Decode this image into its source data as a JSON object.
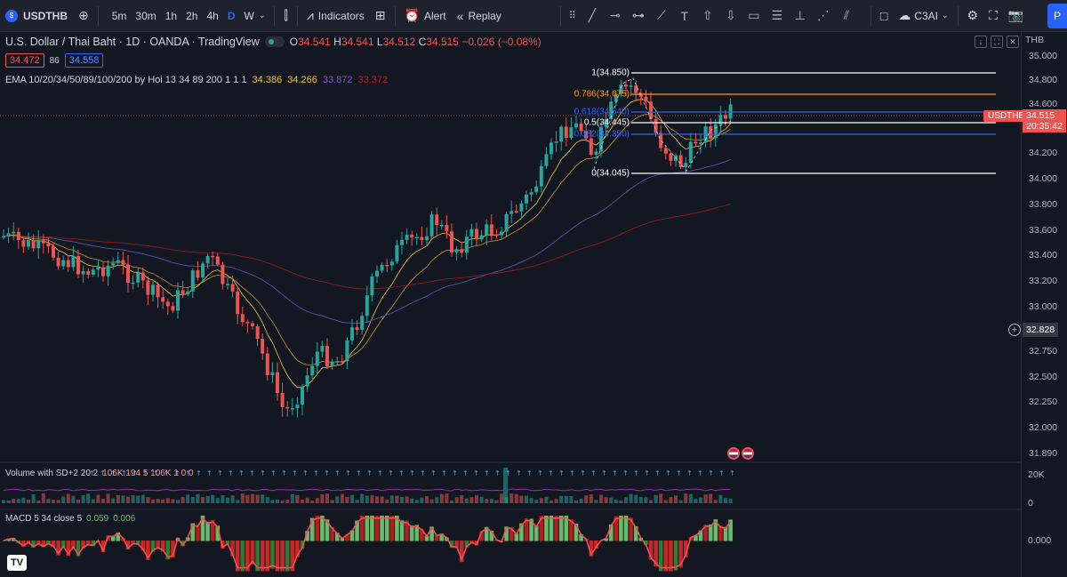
{
  "toolbar": {
    "symbol": "USDTHB",
    "timeframes": [
      "5m",
      "30m",
      "1h",
      "2h",
      "4h",
      "D",
      "W"
    ],
    "active_timeframe": "D",
    "indicators_label": "Indicators",
    "alert_label": "Alert",
    "replay_label": "Replay",
    "layout_name": "C3AI"
  },
  "legend": {
    "title": "U.S. Dollar / Thai Baht · 1D · OANDA · TradingView",
    "o_key": "O",
    "o_val": "34.541",
    "h_key": "H",
    "h_val": "34.541",
    "l_key": "L",
    "l_val": "34.512",
    "c_key": "C",
    "c_val": "34.515",
    "change": "−0.026 (−0.08%)",
    "bid": "34.472",
    "spread": "86",
    "ask": "34.558"
  },
  "ema": {
    "label": "EMA 10/20/34/50/89/100/200 by Hoi 13 34 89 200 1 1 1",
    "values": [
      "34.386",
      "34.266",
      "33.872",
      "33.372"
    ],
    "colors": [
      "#f5c242",
      "#f5c242",
      "#7e57c2",
      "#b71c1c"
    ]
  },
  "axis": {
    "currency": "THB",
    "labels": [
      "35.000",
      "34.800",
      "34.600",
      "34.400",
      "34.200",
      "34.000",
      "33.800",
      "33.600",
      "33.400",
      "33.200",
      "33.000",
      "32.750",
      "32.500",
      "32.250",
      "32.000",
      "31.890"
    ],
    "crosshair": "32.828",
    "last_price": "34.515",
    "countdown": "20:35:42",
    "symbol_tag": "USDTHB"
  },
  "fib": {
    "levels": [
      {
        "label": "1(34.850)",
        "color": "#ffffff"
      },
      {
        "label": "0.786(34.675)",
        "color": "#ff9800"
      },
      {
        "label": "0.618(34.540)",
        "color": "#2962ff"
      },
      {
        "label": "0.5(34.445)",
        "color": "#ffffff"
      },
      {
        "label": "0.382(34.350)",
        "color": "#2962ff"
      },
      {
        "label": "0(34.045)",
        "color": "#ffffff"
      }
    ]
  },
  "volume": {
    "label": "Volume with SD+2 20 2",
    "values": "106K 194 5 106K 1 0 0",
    "axis_top": "20K",
    "axis_bottom": "0"
  },
  "macd": {
    "label": "MACD 5 34 close 5",
    "v1": "0.059",
    "v2": "0.006",
    "axis": "0.000"
  },
  "colors": {
    "up": "#26a69a",
    "down": "#ef5350",
    "accent": "#2962ff",
    "background": "#131722"
  }
}
